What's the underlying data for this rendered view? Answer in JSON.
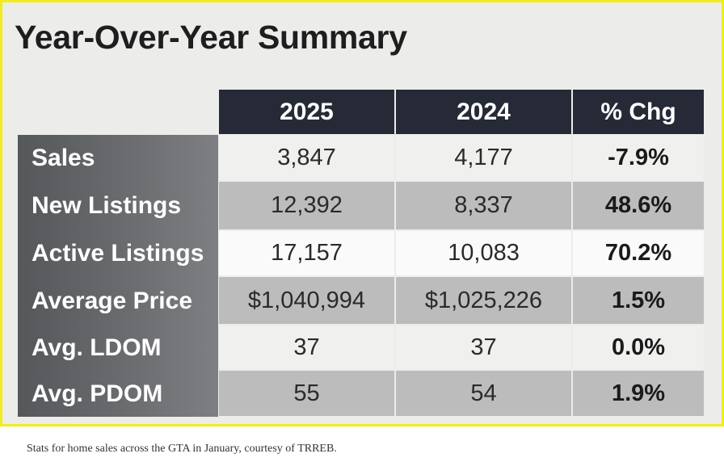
{
  "title": "Year-Over-Year Summary",
  "caption": "Stats for home sales across the GTA in January, courtesy of TRREB.",
  "colors": {
    "frame": "#f2ec1c",
    "header": "#262a36",
    "row_label_bg": "#636568",
    "shade_dark": "#bcbcbc",
    "shade_light": "#f0f0ef"
  },
  "chart_data": {
    "type": "table",
    "title": "Year-Over-Year Summary",
    "columns": [
      "2025",
      "2024",
      "% Chg"
    ],
    "rows": [
      {
        "label": "Sales",
        "values": [
          "3,847",
          "4,177",
          "-7.9%"
        ]
      },
      {
        "label": "New Listings",
        "values": [
          "12,392",
          "8,337",
          "48.6%"
        ]
      },
      {
        "label": "Active Listings",
        "values": [
          "17,157",
          "10,083",
          "70.2%"
        ]
      },
      {
        "label": "Average Price",
        "values": [
          "$1,040,994",
          "$1,025,226",
          "1.5%"
        ]
      },
      {
        "label": "Avg. LDOM",
        "values": [
          "37",
          "37",
          "0.0%"
        ]
      },
      {
        "label": "Avg. PDOM",
        "values": [
          "55",
          "54",
          "1.9%"
        ]
      }
    ]
  }
}
